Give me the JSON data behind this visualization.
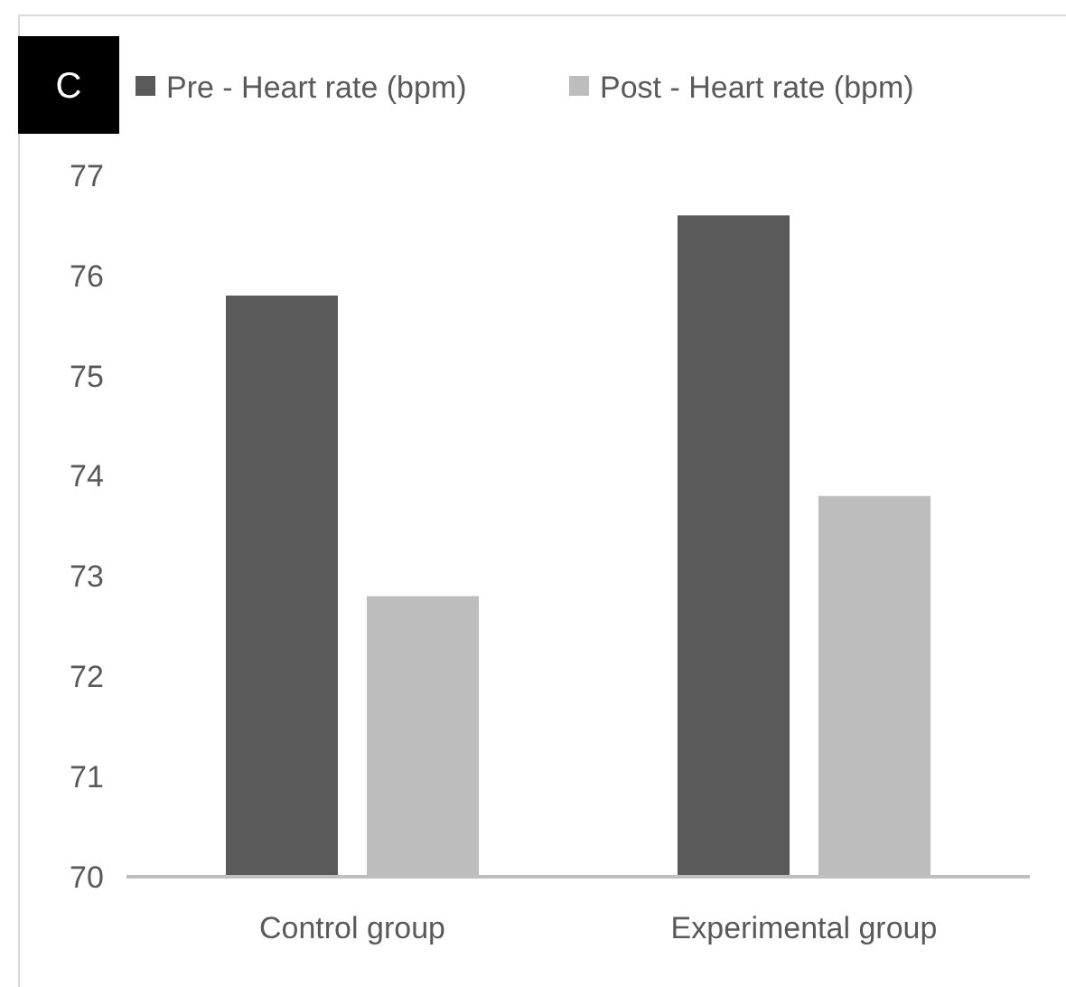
{
  "chart_data": {
    "type": "bar",
    "categories": [
      "Control group",
      "Experimental group"
    ],
    "series": [
      {
        "name": "Pre - Heart rate (bpm)",
        "color": "#5a5a5a",
        "values": [
          75.8,
          76.6
        ]
      },
      {
        "name": "Post - Heart rate (bpm)",
        "color": "#bdbdbd",
        "values": [
          72.8,
          73.8
        ]
      }
    ],
    "ylim": [
      70,
      77
    ],
    "yticks": [
      70,
      71,
      72,
      73,
      74,
      75,
      76,
      77
    ],
    "grid": false,
    "legend": "top",
    "annotations": [
      "C"
    ]
  }
}
